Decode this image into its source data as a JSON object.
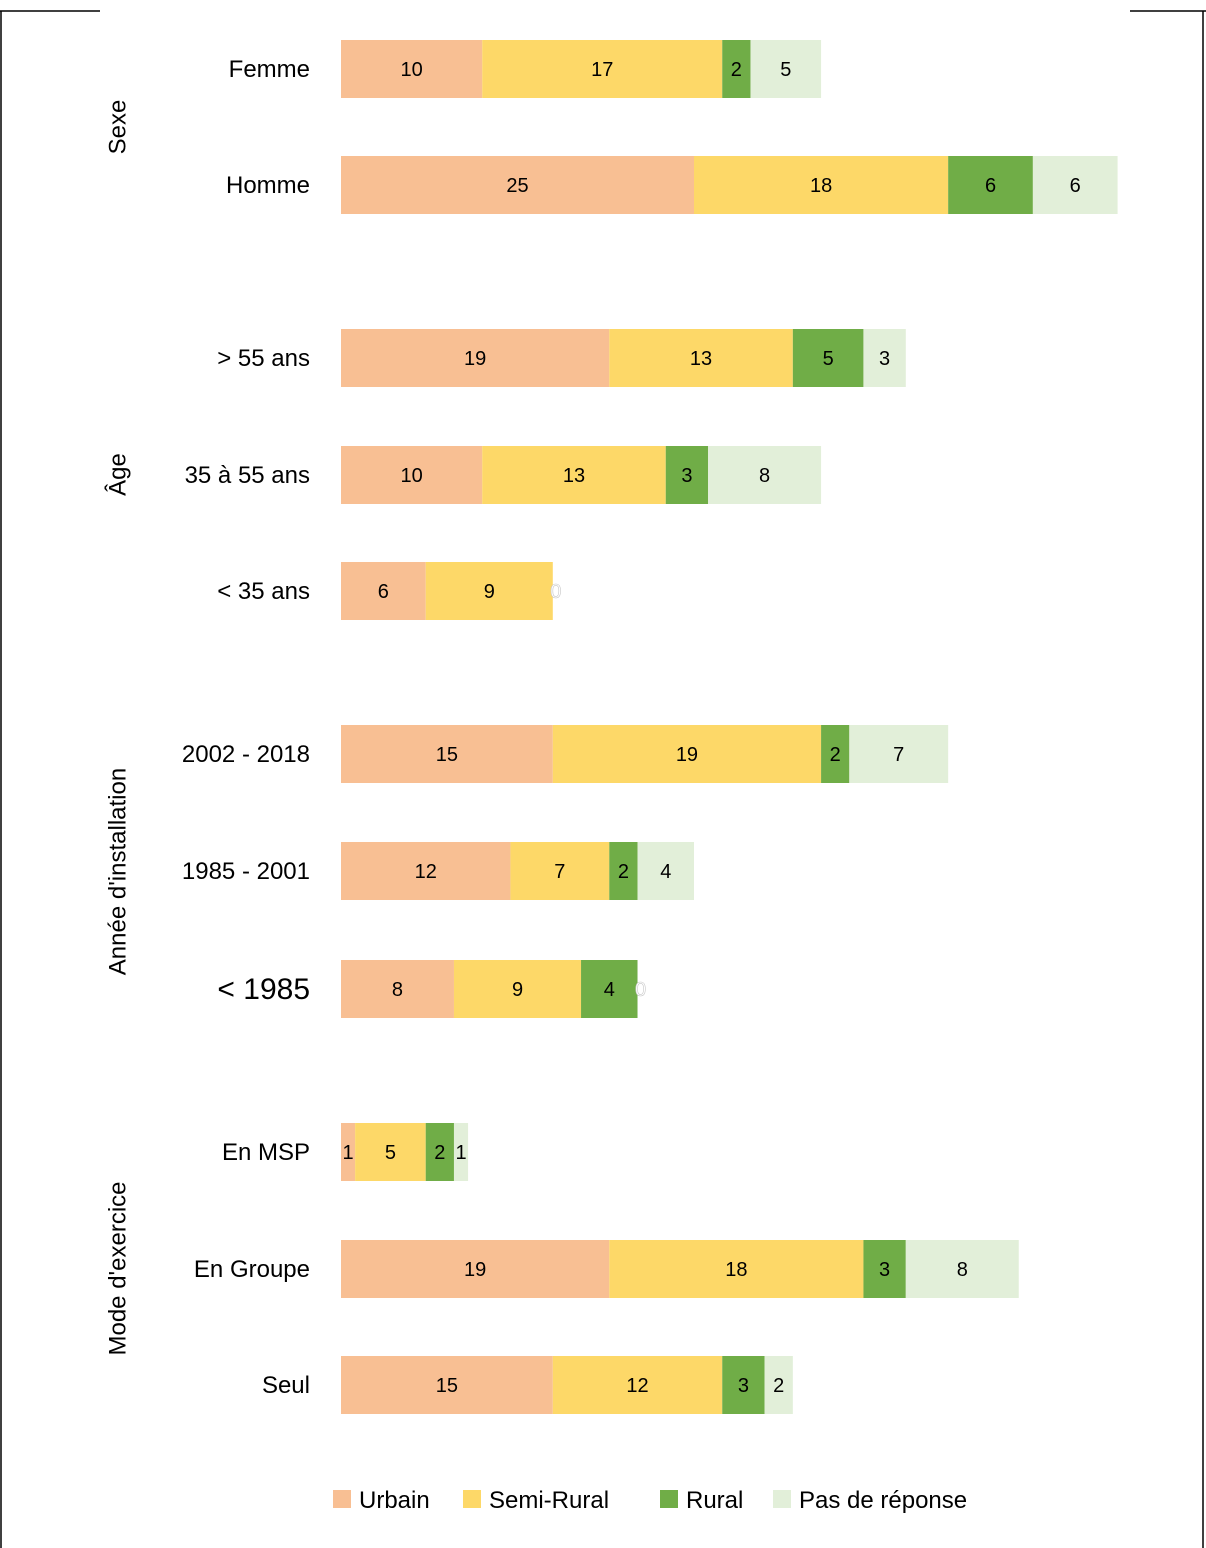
{
  "chart_data": {
    "type": "bar",
    "orientation": "horizontal",
    "stacked": true,
    "title": "",
    "xlabel": "",
    "ylabel": "",
    "grid": false,
    "legend_position": "bottom",
    "groups": [
      {
        "name": "Sexe",
        "categories": [
          "Femme",
          "Homme"
        ]
      },
      {
        "name": "Âge",
        "categories": [
          "> 55 ans",
          "35 à 55 ans",
          "< 35 ans"
        ]
      },
      {
        "name": "Année d'installation",
        "categories": [
          "2002 - 2018",
          "1985 - 2001",
          "<  1985"
        ]
      },
      {
        "name": "Mode d'exercice",
        "categories": [
          "En MSP",
          "En Groupe",
          "Seul"
        ]
      }
    ],
    "categories": [
      "Femme",
      "Homme",
      "> 55 ans",
      "35 à 55 ans",
      "< 35 ans",
      "2002 - 2018",
      "1985 - 2001",
      "<  1985",
      "En MSP",
      "En Groupe",
      "Seul"
    ],
    "series": [
      {
        "name": "Urbain",
        "color": "#F8BF93",
        "values": [
          10,
          25,
          19,
          10,
          6,
          15,
          12,
          8,
          1,
          19,
          15
        ]
      },
      {
        "name": "Semi-Rural",
        "color": "#FDD868",
        "values": [
          17,
          18,
          13,
          13,
          9,
          19,
          7,
          9,
          5,
          18,
          12
        ]
      },
      {
        "name": "Rural",
        "color": "#70AD47",
        "values": [
          2,
          6,
          5,
          3,
          0,
          2,
          2,
          4,
          2,
          3,
          3
        ]
      },
      {
        "name": "Pas de réponse",
        "color": "#E2EFD9",
        "values": [
          5,
          6,
          3,
          8,
          null,
          7,
          4,
          0,
          1,
          8,
          2
        ]
      }
    ]
  }
}
